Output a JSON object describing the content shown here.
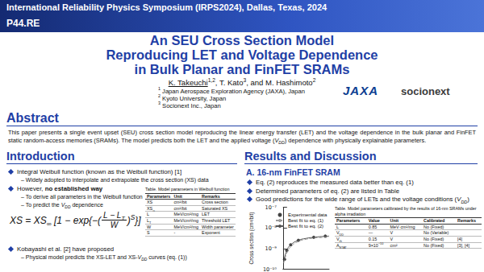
{
  "header": {
    "conference": "International Reliability Physics Symposium (IRPS2024), Dallas, Texas, 2024",
    "poster_id": "P44.RE",
    "title": [
      "An SEU Cross Section Model",
      "Reproducing LET and Voltage Dependence",
      "in Bulk Planar and FinFET SRAMs"
    ],
    "authors": [
      {
        "u": "K. Takeuchi"
      },
      {
        "sup": "1,2"
      },
      ", T. Kato",
      {
        "sup": "3"
      },
      ", and M. Hashimoto",
      {
        "sup": "2"
      }
    ],
    "affiliations": [
      [
        {
          "sup": "1"
        },
        " Japan Aerospace Exploration Agency (JAXA), Japan"
      ],
      [
        {
          "sup": "2"
        },
        " Kyoto University, Japan"
      ],
      [
        {
          "sup": "3"
        },
        " Socionext Inc., Japan"
      ]
    ],
    "logos": [
      "JAXA",
      "socionext"
    ]
  },
  "abstract": {
    "heading": "Abstract",
    "text": [
      "This paper presents a single event upset (SEU) cross section model reproducing the linear energy transfer (LET) and the voltage dependence in the bulk planar and FinFET static random-access memories (SRAMs). The model predicts both the LET and the applied voltage (",
      {
        "i": [
          "V",
          {
            "sub": "DD"
          }
        ]
      },
      ") dependence with physically explainable parameters."
    ]
  },
  "introduction": {
    "heading": "Introduction",
    "bullets": [
      {
        "text": "Integral Weibull function (known as the Weibull function) [1]",
        "sub": [
          "– Widely adopted to interpolate and extrapolate the cross section (XS) data"
        ]
      },
      {
        "text": [
          "However, ",
          {
            "b": "no established way"
          }
        ],
        "sub": [
          "– To derive all parameters in the Weibull function",
          [
            "– To predict the ",
            {
              "i": [
                "V",
                {
                  "sub": "DD"
                }
              ]
            },
            " dependence"
          ]
        ]
      },
      {
        "text": "Kobayashi et al. [2] have proposed",
        "sub": [
          [
            "– Physical model predicts the XS-LET and XS-",
            {
              "i": [
                "V",
                {
                  "sub": "DD"
                }
              ]
            },
            " curves (eq. (1))"
          ]
        ]
      }
    ],
    "formula": {
      "lhs": [
        "XS = XS",
        {
          "sub": "∞"
        }
      ],
      "open": "[1 − exp{−(",
      "num": [
        "L − L",
        {
          "sub": "T"
        }
      ],
      "den": "W",
      "close": ")",
      "exp": "S",
      "end": "}]"
    },
    "table": {
      "caption": "Table. Model parameters in Weibull function",
      "columns": [
        "Parameters",
        "Unit",
        "Remarks"
      ],
      "rows": [
        [
          "XS",
          "cm²/bit",
          "Cross section"
        ],
        [
          [
            "XS",
            {
              "sub": "∞"
            }
          ],
          "cm²/bit",
          "Saturated XS"
        ],
        [
          "L",
          "MeV/cm²/mg",
          "LET"
        ],
        [
          [
            "L",
            {
              "sub": "T"
            }
          ],
          "MeV/cm²/mg",
          "Threshold LET"
        ],
        [
          "W",
          "MeV/cm²/mg",
          "Width parameter"
        ],
        [
          "S",
          "-",
          "Exponent"
        ]
      ]
    }
  },
  "results": {
    "heading": "Results and Discussion",
    "subheading": "A. 16-nm FinFET SRAM",
    "bullets": [
      "Eq. (2) reproduces the measured data better than eq. (1)",
      "Determined parameters of eq. (2) are listed in Table",
      [
        "Good predictions for the wide range of LETs and the voltage conditions (",
        {
          "i": [
            "V",
            {
              "sub": "DD"
            }
          ]
        },
        ")"
      ]
    ],
    "table": {
      "caption": "Table. Model parameters calibrated by the results of 16-nm SRAMs under alpha irradiation",
      "columns": [
        "Parameters",
        "Value",
        "Unit",
        "Calibrated",
        "Remarks"
      ],
      "rows": [
        [
          "L",
          0.85,
          "MeV·cm²/mg",
          "No (Fixed)",
          null
        ],
        [
          [
            "V",
            {
              "sub": "DD"
            }
          ],
          "—",
          "V",
          "No (Variable)",
          null
        ],
        [
          [
            "V",
            {
              "sub": "th"
            }
          ],
          0.15,
          "V",
          "No (Fixed)",
          "[4]"
        ],
        [
          [
            "A",
            {
              "sub": "STAT"
            }
          ],
          [
            "9×10",
            {
              "sup": "−10"
            }
          ],
          "cm²",
          "No (Fixed)",
          "[3], [4]"
        ]
      ]
    }
  },
  "chart_data": {
    "type": "scatter",
    "y_label": "Cross section (cm²/bit)",
    "log": "y",
    "xlim": [
      0,
      60
    ],
    "ylim": [
      1e-10,
      1e-07
    ],
    "yticks": [
      {
        "value": 1e-10,
        "label": "10⁻¹⁰"
      },
      {
        "value": 1e-09,
        "label": "10⁻⁹"
      },
      {
        "value": 1e-08,
        "label": "10⁻⁸"
      },
      {
        "value": 1e-07,
        "label": "10⁻⁷"
      }
    ],
    "tick_labels": "y",
    "grid": false,
    "legend": "upper left",
    "series": [
      {
        "name": "Experimental data",
        "type": "scatter",
        "marker": "circle",
        "color": "#111111",
        "x": [
          2,
          5,
          10,
          20,
          40,
          55
        ],
        "values": [
          3e-10,
          8e-10,
          1.5e-09,
          2.5e-09,
          3.5e-09,
          4e-09
        ]
      },
      {
        "name": "Best fit to eq. (1)",
        "type": "line",
        "line_style": "dashed",
        "color": "#9a9a9a",
        "x": [
          1,
          5,
          10,
          20,
          30,
          40,
          50,
          60
        ],
        "values": [
          2e-10,
          6e-10,
          1.2e-09,
          2.2e-09,
          2.8e-09,
          3.2e-09,
          3.4e-09,
          3.5e-09
        ]
      },
      {
        "name": "Best fit to eq. (2)",
        "type": "line",
        "line_style": "solid",
        "color": "#555555",
        "x": [
          1,
          5,
          10,
          20,
          30,
          40,
          50,
          60
        ],
        "values": [
          2.5e-10,
          8e-10,
          1.5e-09,
          2.5e-09,
          3.1e-09,
          3.5e-09,
          3.8e-09,
          4e-09
        ]
      }
    ]
  }
}
